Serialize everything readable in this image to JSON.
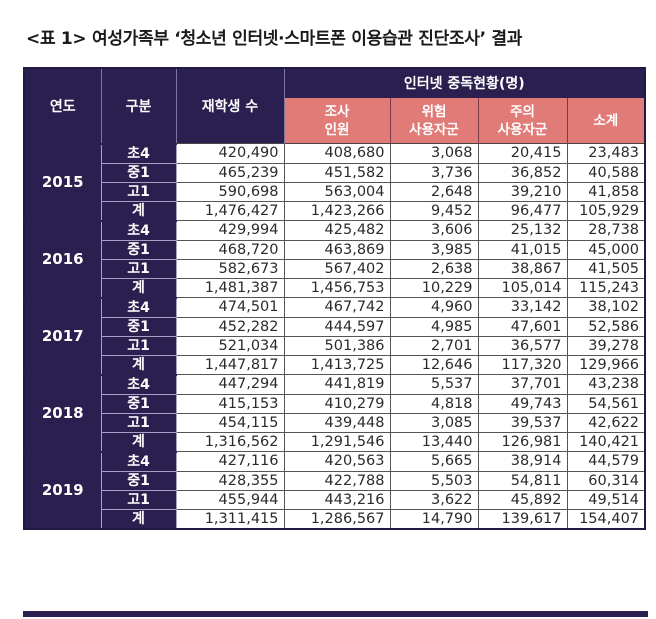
{
  "title": "<표 1> 여성가족부 ‘청소년 인터넷·스마트폰 이용습관 진단조사’ 결과",
  "table": {
    "headers": {
      "year": "연도",
      "division": "구분",
      "enrolled": "재학생 수",
      "group": "인터넷 중독현황(명)",
      "surveyed_line1": "조사",
      "surveyed_line2": "인원",
      "risk_line1": "위험",
      "risk_line2": "사용자군",
      "caution_line1": "주의",
      "caution_line2": "사용자군",
      "subtotal": "소계"
    },
    "colors": {
      "header_dark": "#2a1f4e",
      "header_pink": "#e07b78"
    },
    "years": [
      {
        "year": "2015",
        "rows": [
          {
            "division": "초4",
            "enrolled": "420,490",
            "surveyed": "408,680",
            "risk": "3,068",
            "caution": "20,415",
            "subtotal": "23,483"
          },
          {
            "division": "중1",
            "enrolled": "465,239",
            "surveyed": "451,582",
            "risk": "3,736",
            "caution": "36,852",
            "subtotal": "40,588"
          },
          {
            "division": "고1",
            "enrolled": "590,698",
            "surveyed": "563,004",
            "risk": "2,648",
            "caution": "39,210",
            "subtotal": "41,858"
          },
          {
            "division": "계",
            "enrolled": "1,476,427",
            "surveyed": "1,423,266",
            "risk": "9,452",
            "caution": "96,477",
            "subtotal": "105,929"
          }
        ]
      },
      {
        "year": "2016",
        "rows": [
          {
            "division": "초4",
            "enrolled": "429,994",
            "surveyed": "425,482",
            "risk": "3,606",
            "caution": "25,132",
            "subtotal": "28,738"
          },
          {
            "division": "중1",
            "enrolled": "468,720",
            "surveyed": "463,869",
            "risk": "3,985",
            "caution": "41,015",
            "subtotal": "45,000"
          },
          {
            "division": "고1",
            "enrolled": "582,673",
            "surveyed": "567,402",
            "risk": "2,638",
            "caution": "38,867",
            "subtotal": "41,505"
          },
          {
            "division": "계",
            "enrolled": "1,481,387",
            "surveyed": "1,456,753",
            "risk": "10,229",
            "caution": "105,014",
            "subtotal": "115,243"
          }
        ]
      },
      {
        "year": "2017",
        "rows": [
          {
            "division": "초4",
            "enrolled": "474,501",
            "surveyed": "467,742",
            "risk": "4,960",
            "caution": "33,142",
            "subtotal": "38,102"
          },
          {
            "division": "중1",
            "enrolled": "452,282",
            "surveyed": "444,597",
            "risk": "4,985",
            "caution": "47,601",
            "subtotal": "52,586"
          },
          {
            "division": "고1",
            "enrolled": "521,034",
            "surveyed": "501,386",
            "risk": "2,701",
            "caution": "36,577",
            "subtotal": "39,278"
          },
          {
            "division": "계",
            "enrolled": "1,447,817",
            "surveyed": "1,413,725",
            "risk": "12,646",
            "caution": "117,320",
            "subtotal": "129,966"
          }
        ]
      },
      {
        "year": "2018",
        "rows": [
          {
            "division": "초4",
            "enrolled": "447,294",
            "surveyed": "441,819",
            "risk": "5,537",
            "caution": "37,701",
            "subtotal": "43,238"
          },
          {
            "division": "중1",
            "enrolled": "415,153",
            "surveyed": "410,279",
            "risk": "4,818",
            "caution": "49,743",
            "subtotal": "54,561"
          },
          {
            "division": "고1",
            "enrolled": "454,115",
            "surveyed": "439,448",
            "risk": "3,085",
            "caution": "39,537",
            "subtotal": "42,622"
          },
          {
            "division": "계",
            "enrolled": "1,316,562",
            "surveyed": "1,291,546",
            "risk": "13,440",
            "caution": "126,981",
            "subtotal": "140,421"
          }
        ]
      },
      {
        "year": "2019",
        "rows": [
          {
            "division": "초4",
            "enrolled": "427,116",
            "surveyed": "420,563",
            "risk": "5,665",
            "caution": "38,914",
            "subtotal": "44,579"
          },
          {
            "division": "중1",
            "enrolled": "428,355",
            "surveyed": "422,788",
            "risk": "5,503",
            "caution": "54,811",
            "subtotal": "60,314"
          },
          {
            "division": "고1",
            "enrolled": "455,944",
            "surveyed": "443,216",
            "risk": "3,622",
            "caution": "45,892",
            "subtotal": "49,514"
          },
          {
            "division": "계",
            "enrolled": "1,311,415",
            "surveyed": "1,286,567",
            "risk": "14,790",
            "caution": "139,617",
            "subtotal": "154,407"
          }
        ]
      }
    ]
  }
}
